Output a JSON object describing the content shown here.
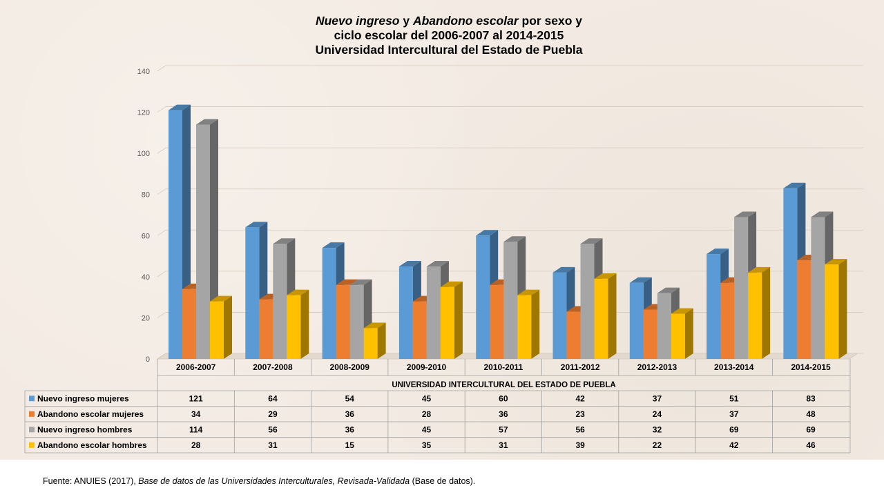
{
  "title": {
    "part1": "Nuevo ingreso",
    "part2": " y ",
    "part3": "Abandono escolar",
    "part4": " por sexo y",
    "line2": "ciclo escolar del 2006-2007 al 2014-2015",
    "line3": "Universidad Intercultural del Estado de Puebla"
  },
  "source": {
    "prefix": "Fuente: ANUIES (2017), ",
    "italic": "Base de datos de las Universidades Interculturales, Revisada-Validada",
    "suffix": " (Base de datos)."
  },
  "chart_data": {
    "type": "bar",
    "title": "Nuevo ingreso y Abandono escolar por sexo y ciclo escolar del 2006-2007 al 2014-2015 Universidad Intercultural del Estado de Puebla",
    "xlabel": "UNIVERSIDAD INTERCULTURAL DEL ESTADO DE PUEBLA",
    "ylabel": "",
    "ylim": [
      0,
      140
    ],
    "yticks": [
      0,
      20,
      40,
      60,
      80,
      100,
      120,
      140
    ],
    "grid": true,
    "legend": "data-table-left",
    "categories": [
      "2006-2007",
      "2007-2008",
      "2008-2009",
      "2009-2010",
      "2010-2011",
      "2011-2012",
      "2012-2013",
      "2013-2014",
      "2014-2015"
    ],
    "series": [
      {
        "name": "Nuevo ingreso mujeres",
        "color": "#5b9bd5",
        "values": [
          121,
          64,
          54,
          45,
          60,
          42,
          37,
          51,
          83
        ]
      },
      {
        "name": "Abandono escolar mujeres",
        "color": "#ed7d31",
        "values": [
          34,
          29,
          36,
          28,
          36,
          23,
          24,
          37,
          48
        ]
      },
      {
        "name": "Nuevo ingreso hombres",
        "color": "#a5a5a5",
        "values": [
          114,
          56,
          36,
          45,
          57,
          56,
          32,
          69,
          69
        ]
      },
      {
        "name": "Abandono escolar hombres",
        "color": "#ffc000",
        "values": [
          28,
          31,
          15,
          35,
          31,
          39,
          22,
          42,
          46
        ]
      }
    ]
  }
}
